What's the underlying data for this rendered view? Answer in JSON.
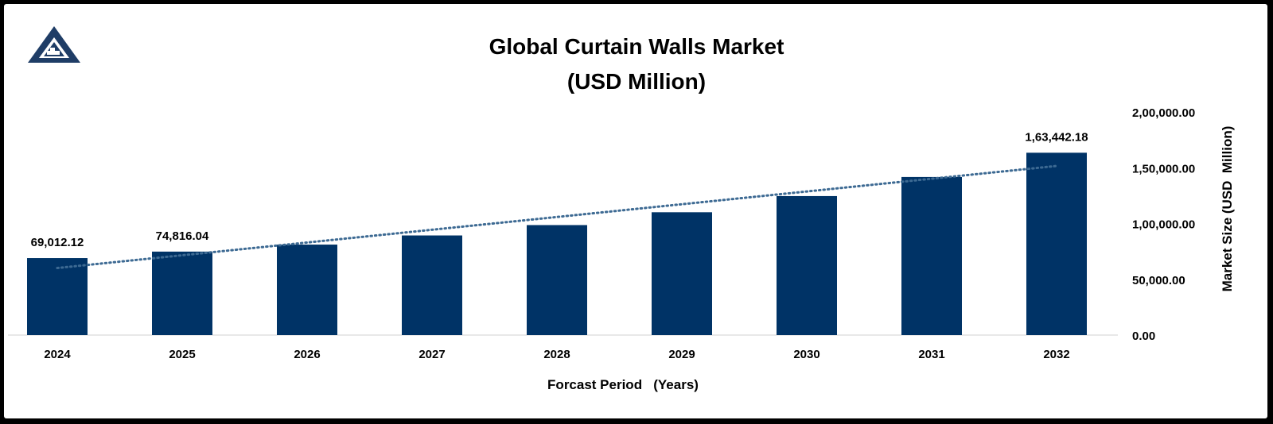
{
  "chart_data": {
    "type": "bar",
    "title": "Global Curtain Walls Market",
    "subtitle": "(USD Million)",
    "xlabel": "Forcast Period   (Years)",
    "ylabel": "Market Size (USD  Million)",
    "categories": [
      "2024",
      "2025",
      "2026",
      "2027",
      "2028",
      "2029",
      "2030",
      "2031",
      "2032"
    ],
    "values": [
      69012.12,
      74816.04,
      81100,
      89300,
      98600,
      110100,
      124600,
      141700,
      163442.18
    ],
    "data_labels": [
      {
        "index": 0,
        "text": "69,012.12"
      },
      {
        "index": 1,
        "text": "74,816.04"
      },
      {
        "index": 8,
        "text": "1,63,442.18"
      }
    ],
    "y_axis": {
      "position": "right",
      "ylim": [
        0,
        200000
      ],
      "ticks": [
        0,
        50000,
        100000,
        150000,
        200000
      ],
      "tick_labels": [
        "0.00",
        "50,000.00",
        "1,00,000.00",
        "1,50,000.00",
        "2,00,000.00"
      ]
    },
    "trendline": {
      "type": "linear",
      "style": "dotted"
    },
    "grid": false,
    "legend": "none",
    "colors": {
      "bar": "#003366",
      "trendline": "#3d6a93"
    }
  }
}
